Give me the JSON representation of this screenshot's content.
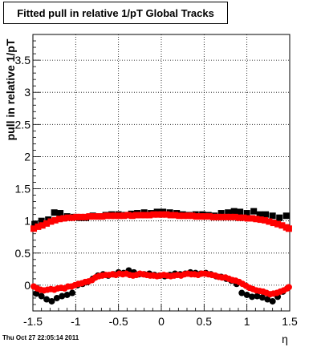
{
  "title": "Fitted pull in relative 1/pT  Global Tracks",
  "footer": "Thu Oct 27 22:05:14 2011",
  "chart_data": {
    "type": "scatter",
    "xlabel": "η",
    "ylabel": "pull in relative 1/pT",
    "xlim": [
      -1.5,
      1.5
    ],
    "ylim": [
      -0.4,
      3.9
    ],
    "xticks": [
      "-1.5",
      "-1",
      "-0.5",
      "0",
      "0.5",
      "1",
      "1.5"
    ],
    "yticks": [
      "0",
      "0.5",
      "1",
      "1.5",
      "2",
      "2.5",
      "3",
      "3.5"
    ],
    "grid": true,
    "colors": {
      "black": "#000000",
      "red": "#ff0000"
    },
    "series": [
      {
        "color": "black",
        "marker": "square",
        "group": "width",
        "x": [
          -1.48,
          -1.4,
          -1.32,
          -1.25,
          -1.18,
          -1.1,
          -1.02,
          -0.95,
          -0.88,
          -0.8,
          -0.72,
          -0.65,
          -0.58,
          -0.5,
          -0.42,
          -0.35,
          -0.28,
          -0.2,
          -0.12,
          -0.05,
          0.02,
          0.1,
          0.18,
          0.25,
          0.32,
          0.4,
          0.48,
          0.55,
          0.62,
          0.7,
          0.78,
          0.85,
          0.92,
          1.0,
          1.08,
          1.15,
          1.22,
          1.3,
          1.38,
          1.46
        ],
        "y": [
          0.95,
          1.0,
          1.02,
          1.13,
          1.12,
          1.07,
          1.06,
          1.05,
          1.05,
          1.08,
          1.07,
          1.09,
          1.1,
          1.1,
          1.09,
          1.11,
          1.12,
          1.13,
          1.12,
          1.14,
          1.14,
          1.13,
          1.12,
          1.1,
          1.09,
          1.1,
          1.1,
          1.09,
          1.08,
          1.12,
          1.13,
          1.15,
          1.14,
          1.12,
          1.15,
          1.1,
          1.1,
          1.08,
          1.05,
          1.08
        ]
      },
      {
        "color": "red",
        "marker": "square",
        "group": "width",
        "x": [
          -1.49,
          -1.44,
          -1.39,
          -1.34,
          -1.29,
          -1.24,
          -1.19,
          -1.14,
          -1.09,
          -1.04,
          -0.99,
          -0.94,
          -0.89,
          -0.84,
          -0.79,
          -0.74,
          -0.69,
          -0.64,
          -0.59,
          -0.54,
          -0.49,
          -0.44,
          -0.39,
          -0.34,
          -0.29,
          -0.24,
          -0.19,
          -0.14,
          -0.09,
          -0.04,
          0.01,
          0.06,
          0.11,
          0.16,
          0.21,
          0.26,
          0.31,
          0.36,
          0.41,
          0.46,
          0.51,
          0.56,
          0.61,
          0.66,
          0.71,
          0.76,
          0.81,
          0.86,
          0.91,
          0.96,
          1.01,
          1.06,
          1.11,
          1.16,
          1.21,
          1.26,
          1.31,
          1.36,
          1.41,
          1.46,
          1.49
        ],
        "y": [
          0.88,
          0.91,
          0.93,
          0.96,
          0.99,
          1.01,
          1.03,
          1.04,
          1.05,
          1.05,
          1.06,
          1.06,
          1.06,
          1.07,
          1.07,
          1.07,
          1.07,
          1.08,
          1.08,
          1.08,
          1.08,
          1.08,
          1.09,
          1.08,
          1.09,
          1.09,
          1.09,
          1.09,
          1.1,
          1.1,
          1.1,
          1.1,
          1.09,
          1.09,
          1.08,
          1.08,
          1.08,
          1.08,
          1.07,
          1.07,
          1.07,
          1.07,
          1.06,
          1.06,
          1.06,
          1.06,
          1.06,
          1.06,
          1.05,
          1.05,
          1.04,
          1.04,
          1.03,
          1.02,
          1.01,
          0.99,
          0.97,
          0.95,
          0.93,
          0.9,
          0.88
        ]
      },
      {
        "color": "black",
        "marker": "circle",
        "group": "mean",
        "x": [
          -1.46,
          -1.4,
          -1.34,
          -1.28,
          -1.22,
          -1.16,
          -1.1,
          -1.04,
          -0.98,
          -0.92,
          -0.86,
          -0.8,
          -0.74,
          -0.68,
          -0.62,
          -0.56,
          -0.5,
          -0.44,
          -0.38,
          -0.32,
          -0.26,
          -0.2,
          -0.14,
          -0.08,
          -0.02,
          0.04,
          0.1,
          0.16,
          0.22,
          0.28,
          0.34,
          0.4,
          0.46,
          0.52,
          0.58,
          0.64,
          0.7,
          0.76,
          0.82,
          0.88,
          0.94,
          1.0,
          1.06,
          1.12,
          1.18,
          1.24,
          1.3,
          1.36,
          1.42
        ],
        "y": [
          -0.13,
          -0.17,
          -0.22,
          -0.25,
          -0.2,
          -0.17,
          -0.15,
          -0.12,
          0.0,
          0.02,
          0.05,
          0.1,
          0.15,
          0.17,
          0.15,
          0.17,
          0.2,
          0.19,
          0.23,
          0.2,
          0.17,
          0.17,
          0.18,
          0.16,
          0.15,
          0.14,
          0.16,
          0.18,
          0.17,
          0.18,
          0.2,
          0.19,
          0.18,
          0.19,
          0.17,
          0.14,
          0.13,
          0.1,
          0.07,
          0.02,
          -0.12,
          -0.15,
          -0.18,
          -0.17,
          -0.19,
          -0.22,
          -0.25,
          -0.18,
          -0.1
        ]
      },
      {
        "color": "red",
        "marker": "circle",
        "group": "mean",
        "x": [
          -1.49,
          -1.45,
          -1.41,
          -1.37,
          -1.33,
          -1.29,
          -1.25,
          -1.21,
          -1.17,
          -1.13,
          -1.09,
          -1.05,
          -1.01,
          -0.97,
          -0.93,
          -0.89,
          -0.85,
          -0.81,
          -0.77,
          -0.73,
          -0.69,
          -0.65,
          -0.61,
          -0.57,
          -0.53,
          -0.49,
          -0.45,
          -0.41,
          -0.37,
          -0.33,
          -0.29,
          -0.25,
          -0.21,
          -0.17,
          -0.13,
          -0.09,
          -0.05,
          -0.01,
          0.03,
          0.07,
          0.11,
          0.15,
          0.19,
          0.23,
          0.27,
          0.31,
          0.35,
          0.39,
          0.43,
          0.47,
          0.51,
          0.55,
          0.59,
          0.63,
          0.67,
          0.71,
          0.75,
          0.79,
          0.83,
          0.87,
          0.91,
          0.95,
          0.99,
          1.03,
          1.07,
          1.11,
          1.15,
          1.19,
          1.23,
          1.27,
          1.31,
          1.35,
          1.39,
          1.43,
          1.47,
          1.49
        ],
        "y": [
          -0.02,
          -0.05,
          -0.07,
          -0.08,
          -0.07,
          -0.06,
          -0.07,
          -0.05,
          -0.04,
          -0.05,
          -0.02,
          -0.02,
          0.0,
          0.02,
          0.03,
          0.05,
          0.06,
          0.08,
          0.12,
          0.14,
          0.15,
          0.16,
          0.16,
          0.17,
          0.16,
          0.18,
          0.17,
          0.18,
          0.16,
          0.15,
          0.16,
          0.18,
          0.17,
          0.16,
          0.15,
          0.15,
          0.14,
          0.15,
          0.16,
          0.15,
          0.14,
          0.15,
          0.16,
          0.15,
          0.17,
          0.18,
          0.17,
          0.17,
          0.16,
          0.18,
          0.18,
          0.17,
          0.16,
          0.15,
          0.13,
          0.12,
          0.12,
          0.1,
          0.08,
          0.07,
          0.05,
          0.02,
          -0.01,
          -0.04,
          -0.06,
          -0.08,
          -0.09,
          -0.1,
          -0.12,
          -0.14,
          -0.13,
          -0.12,
          -0.1,
          -0.08,
          -0.05,
          -0.03
        ]
      }
    ]
  }
}
